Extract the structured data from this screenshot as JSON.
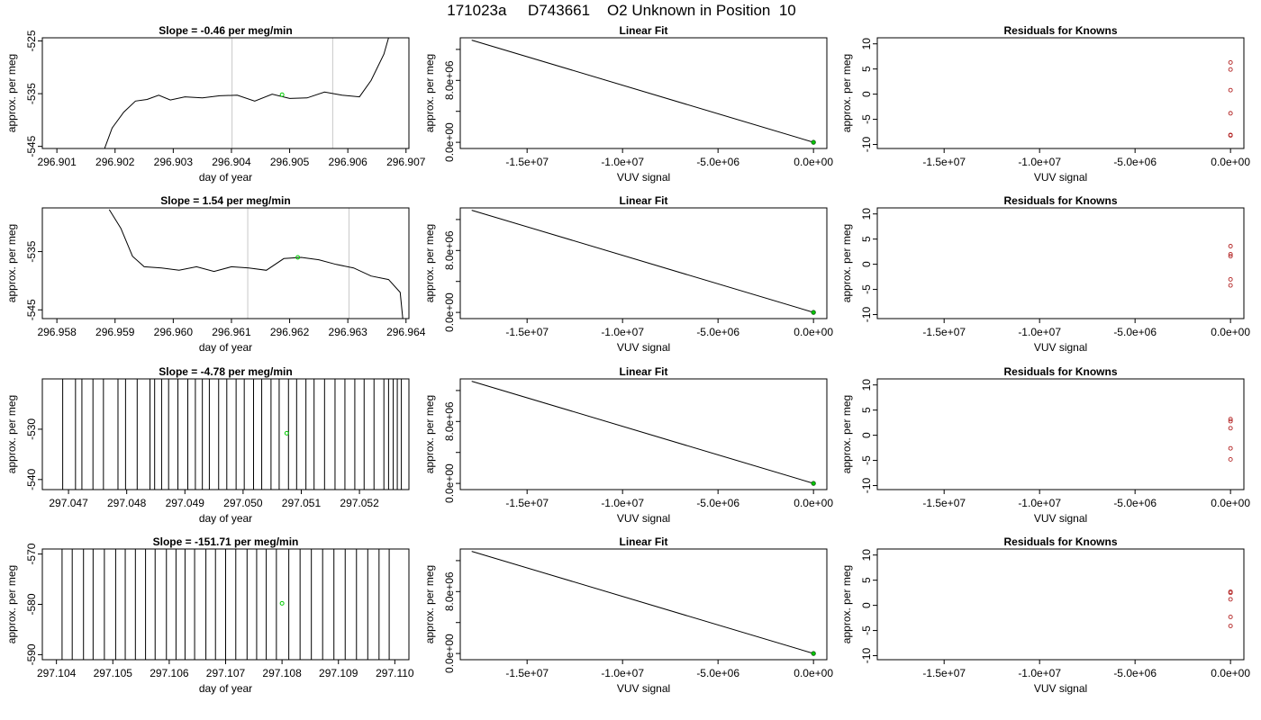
{
  "figure_title": "171023a     D743661    O2 Unknown in Position  10",
  "colors": {
    "trace": "#000000",
    "marker": "#00cc00",
    "residual": "#b22222",
    "frame": "#000000",
    "guide": "#c8c8c8"
  },
  "chart_data": [
    {
      "id": "ts1",
      "type": "line",
      "title": "Slope =  -0.46  per meg/min",
      "xlabel": "day of year",
      "ylabel": "approx. per meg",
      "xlim": [
        296.90075,
        296.90705
      ],
      "ylim": [
        -545.4,
        -524.4
      ],
      "xticks": [
        296.901,
        296.902,
        296.903,
        296.904,
        296.905,
        296.906,
        296.907
      ],
      "xtick_labels": [
        "296.901",
        "296.902",
        "296.903",
        "296.904",
        "296.905",
        "296.906",
        "296.907"
      ],
      "yticks": [
        -545,
        -535,
        -525
      ],
      "ytick_labels": [
        "-545",
        "-535",
        "-525"
      ],
      "guides_x": [
        296.90401,
        296.90574
      ],
      "series": [
        {
          "x": [
            296.90175,
            296.90195,
            296.90215,
            296.90235,
            296.90255,
            296.90275,
            296.90295,
            296.9032,
            296.9035,
            296.9038,
            296.9041,
            296.9044,
            296.9047,
            296.905,
            296.9053,
            296.9056,
            296.9059,
            296.9062,
            296.9064,
            296.90662,
            296.9067
          ],
          "y": [
            -547.5,
            -541.5,
            -538.5,
            -536.4,
            -536.1,
            -535.3,
            -536.2,
            -535.6,
            -535.8,
            -535.4,
            -535.3,
            -536.4,
            -535.1,
            -535.9,
            -535.8,
            -534.7,
            -535.3,
            -535.6,
            -532.5,
            -527.5,
            -524.4
          ]
        }
      ],
      "marker": {
        "x": 296.90487,
        "y": -535.2
      }
    },
    {
      "id": "fit1",
      "type": "line",
      "title": "Linear Fit",
      "xlabel": "VUV signal",
      "ylabel": "approx. per meg",
      "xlim": [
        -18500000,
        700000
      ],
      "ylim": [
        -800000,
        13500000
      ],
      "xticks": [
        -15000000,
        -10000000,
        -5000000,
        0
      ],
      "xtick_labels": [
        "-1.5e+07",
        "-1.0e+07",
        "-5.0e+06",
        "0.0e+00"
      ],
      "yticks": [
        0,
        4000000,
        8000000,
        12000000
      ],
      "ytick_labels": [
        "0.0e+00",
        "",
        "8.0e+06",
        ""
      ],
      "ytick_labels_hidden": [
        "4.0e+06",
        "1.2e+07"
      ],
      "series": [
        {
          "x": [
            -17900000,
            0
          ],
          "y": [
            13200000,
            0
          ]
        }
      ],
      "marker": {
        "x": 0,
        "y": 0
      }
    },
    {
      "id": "res1",
      "type": "scatter",
      "title": "Residuals for Knowns",
      "xlabel": "VUV signal",
      "ylabel": "approx. per meg",
      "xlim": [
        -18500000,
        700000
      ],
      "ylim": [
        -10.8,
        11.2
      ],
      "xticks": [
        -15000000,
        -10000000,
        -5000000,
        0
      ],
      "xtick_labels": [
        "-1.5e+07",
        "-1.0e+07",
        "-5.0e+06",
        "0.0e+00"
      ],
      "yticks": [
        -10,
        -5,
        0,
        5,
        10
      ],
      "ytick_labels": [
        "-10",
        "-5",
        "0",
        "5",
        "10"
      ],
      "points": {
        "x": [
          0,
          0,
          0,
          0,
          0,
          0
        ],
        "y": [
          6.3,
          4.9,
          0.8,
          -3.8,
          -8.2,
          -8.1
        ]
      }
    },
    {
      "id": "ts2",
      "type": "line",
      "title": "Slope =  1.54  per meg/min",
      "xlabel": "day of year",
      "ylabel": "approx. per meg",
      "xlim": [
        296.95775,
        296.96405
      ],
      "ylim": [
        -546.5,
        -527.5
      ],
      "xticks": [
        296.958,
        296.959,
        296.96,
        296.961,
        296.962,
        296.963,
        296.964
      ],
      "xtick_labels": [
        "296.958",
        "296.959",
        "296.960",
        "296.961",
        "296.962",
        "296.963",
        "296.964"
      ],
      "yticks": [
        -545,
        -535
      ],
      "ytick_labels": [
        "-545",
        "-535"
      ],
      "guides_x": [
        296.96128,
        296.96302
      ],
      "series": [
        {
          "x": [
            296.9589,
            296.9591,
            296.9593,
            296.9595,
            296.9598,
            296.9601,
            296.9604,
            296.9607,
            296.961,
            296.9613,
            296.9616,
            296.9619,
            296.9622,
            296.9625,
            296.9628,
            296.9631,
            296.9634,
            296.9637,
            296.9639,
            296.96395
          ],
          "y": [
            -527.8,
            -531.0,
            -535.8,
            -537.6,
            -537.8,
            -538.2,
            -537.6,
            -538.4,
            -537.6,
            -537.8,
            -538.2,
            -536.2,
            -536.0,
            -536.4,
            -537.2,
            -537.8,
            -539.2,
            -539.8,
            -542.0,
            -547.0
          ]
        }
      ],
      "marker": {
        "x": 296.96214,
        "y": -536.0
      }
    },
    {
      "id": "fit2",
      "type": "line",
      "title": "Linear Fit",
      "xlabel": "VUV signal",
      "ylabel": "approx. per meg",
      "xlim": [
        -18500000,
        700000
      ],
      "ylim": [
        -800000,
        13500000
      ],
      "xticks": [
        -15000000,
        -10000000,
        -5000000,
        0
      ],
      "xtick_labels": [
        "-1.5e+07",
        "-1.0e+07",
        "-5.0e+06",
        "0.0e+00"
      ],
      "yticks": [
        0,
        4000000,
        8000000,
        12000000
      ],
      "ytick_labels": [
        "0.0e+00",
        "",
        "8.0e+06",
        ""
      ],
      "ytick_labels_hidden": [
        "4.0e+06",
        "1.2e+07"
      ],
      "series": [
        {
          "x": [
            -17900000,
            0
          ],
          "y": [
            13200000,
            0
          ]
        }
      ],
      "marker": {
        "x": 0,
        "y": 0
      }
    },
    {
      "id": "res2",
      "type": "scatter",
      "title": "Residuals for Knowns",
      "xlabel": "VUV signal",
      "ylabel": "approx. per meg",
      "xlim": [
        -18500000,
        700000
      ],
      "ylim": [
        -10.8,
        11.2
      ],
      "xticks": [
        -15000000,
        -10000000,
        -5000000,
        0
      ],
      "xtick_labels": [
        "-1.5e+07",
        "-1.0e+07",
        "-5.0e+06",
        "0.0e+00"
      ],
      "yticks": [
        -10,
        -5,
        0,
        5,
        10
      ],
      "ytick_labels": [
        "-10",
        "-5",
        "0",
        "5",
        "10"
      ],
      "points": {
        "x": [
          0,
          0,
          0,
          0,
          0
        ],
        "y": [
          3.6,
          2.0,
          1.6,
          -3.0,
          -4.2
        ]
      }
    },
    {
      "id": "ts3",
      "type": "line",
      "title": "Slope =  -4.78  per meg/min",
      "xlabel": "day of year",
      "ylabel": "approx. per meg",
      "xlim": [
        297.04655,
        297.05285
      ],
      "ylim": [
        -542,
        -520
      ],
      "xticks": [
        297.047,
        297.048,
        297.049,
        297.05,
        297.051,
        297.052
      ],
      "xtick_labels": [
        "297.047",
        "297.048",
        "297.049",
        "297.050",
        "297.051",
        "297.052"
      ],
      "yticks": [
        -540,
        -530
      ],
      "ytick_labels": [
        "-540",
        "-530"
      ],
      "spike_ylim": [
        -542,
        -520
      ],
      "spikes_x": [
        297.0469,
        297.04712,
        297.04723,
        297.04742,
        297.0476,
        297.04785,
        297.04798,
        297.04818,
        297.0484,
        297.04848,
        297.0486,
        297.04872,
        297.04888,
        297.04905,
        297.04918,
        297.0493,
        297.04942,
        297.04958,
        297.04972,
        297.04988,
        297.05002,
        297.05018,
        297.05032,
        297.05048,
        297.05062,
        297.05078,
        297.05092,
        297.05108,
        297.05122,
        297.0514,
        297.05158,
        297.05175,
        297.05192,
        297.05208,
        297.05225,
        297.05242,
        297.05258,
        297.05272,
        297.0525,
        297.05265
      ],
      "marker": {
        "x": 297.05075,
        "y": -530.8
      }
    },
    {
      "id": "fit3",
      "type": "line",
      "title": "Linear Fit",
      "xlabel": "VUV signal",
      "ylabel": "approx. per meg",
      "xlim": [
        -18500000,
        700000
      ],
      "ylim": [
        -800000,
        13500000
      ],
      "xticks": [
        -15000000,
        -10000000,
        -5000000,
        0
      ],
      "xtick_labels": [
        "-1.5e+07",
        "-1.0e+07",
        "-5.0e+06",
        "0.0e+00"
      ],
      "yticks": [
        0,
        4000000,
        8000000,
        12000000
      ],
      "ytick_labels": [
        "0.0e+00",
        "",
        "8.0e+06",
        ""
      ],
      "ytick_labels_hidden": [
        "4.0e+06",
        "1.2e+07"
      ],
      "series": [
        {
          "x": [
            -17900000,
            0
          ],
          "y": [
            13200000,
            0
          ]
        }
      ],
      "marker": {
        "x": 0,
        "y": 0
      }
    },
    {
      "id": "res3",
      "type": "scatter",
      "title": "Residuals for Knowns",
      "xlabel": "VUV signal",
      "ylabel": "approx. per meg",
      "xlim": [
        -18500000,
        700000
      ],
      "ylim": [
        -10.8,
        11.2
      ],
      "xticks": [
        -15000000,
        -10000000,
        -5000000,
        0
      ],
      "xtick_labels": [
        "-1.5e+07",
        "-1.0e+07",
        "-5.0e+06",
        "0.0e+00"
      ],
      "yticks": [
        -10,
        -5,
        0,
        5,
        10
      ],
      "ytick_labels": [
        "-10",
        "-5",
        "0",
        "5",
        "10"
      ],
      "points": {
        "x": [
          0,
          0,
          0,
          0,
          0
        ],
        "y": [
          3.2,
          2.8,
          1.4,
          -2.6,
          -4.8
        ]
      }
    },
    {
      "id": "ts4",
      "type": "line",
      "title": "Slope =  -151.71  per meg/min",
      "xlabel": "day of year",
      "ylabel": "approx. per meg",
      "xlim": [
        297.10375,
        297.11025
      ],
      "ylim": [
        -591,
        -569
      ],
      "xticks": [
        297.104,
        297.105,
        297.106,
        297.107,
        297.108,
        297.109,
        297.11
      ],
      "xtick_labels": [
        "297.104",
        "297.105",
        "297.106",
        "297.107",
        "297.108",
        "297.109",
        "297.110"
      ],
      "yticks": [
        -590,
        -580,
        -570
      ],
      "ytick_labels": [
        "-590",
        "-580",
        "-570"
      ],
      "spike_ylim": [
        -591,
        -569
      ],
      "spikes_x": [
        297.1041,
        297.10428,
        297.10448,
        297.10465,
        297.10485,
        297.10505,
        297.10522,
        297.1054,
        297.10558,
        297.10575,
        297.10595,
        297.10612,
        297.10628,
        297.10645,
        297.10665,
        297.10682,
        297.107,
        297.10718,
        297.10738,
        297.10755,
        297.10772,
        297.1079,
        297.10812,
        297.10832,
        297.10852,
        297.10872,
        297.10892,
        297.10912,
        297.10932,
        297.10952,
        297.10972,
        297.1099
      ],
      "marker": {
        "x": 297.108,
        "y": -579.8
      }
    },
    {
      "id": "fit4",
      "type": "line",
      "title": "Linear Fit",
      "xlabel": "VUV signal",
      "ylabel": "approx. per meg",
      "xlim": [
        -18500000,
        700000
      ],
      "ylim": [
        -800000,
        13500000
      ],
      "xticks": [
        -15000000,
        -10000000,
        -5000000,
        0
      ],
      "xtick_labels": [
        "-1.5e+07",
        "-1.0e+07",
        "-5.0e+06",
        "0.0e+00"
      ],
      "yticks": [
        0,
        4000000,
        8000000,
        12000000
      ],
      "ytick_labels": [
        "0.0e+00",
        "",
        "8.0e+06",
        ""
      ],
      "ytick_labels_hidden": [
        "4.0e+06",
        "1.2e+07"
      ],
      "series": [
        {
          "x": [
            -17900000,
            0
          ],
          "y": [
            13200000,
            0
          ]
        }
      ],
      "marker": {
        "x": 0,
        "y": 0
      }
    },
    {
      "id": "res4",
      "type": "scatter",
      "title": "Residuals for Knowns",
      "xlabel": "VUV signal",
      "ylabel": "approx. per meg",
      "xlim": [
        -18500000,
        700000
      ],
      "ylim": [
        -10.8,
        11.2
      ],
      "xticks": [
        -15000000,
        -10000000,
        -5000000,
        0
      ],
      "xtick_labels": [
        "-1.5e+07",
        "-1.0e+07",
        "-5.0e+06",
        "0.0e+00"
      ],
      "yticks": [
        -10,
        -5,
        0,
        5,
        10
      ],
      "ytick_labels": [
        "-10",
        "-5",
        "0",
        "5",
        "10"
      ],
      "points": {
        "x": [
          0,
          0,
          0,
          0,
          0
        ],
        "y": [
          2.7,
          2.5,
          1.2,
          -2.3,
          -4.1
        ]
      }
    }
  ]
}
